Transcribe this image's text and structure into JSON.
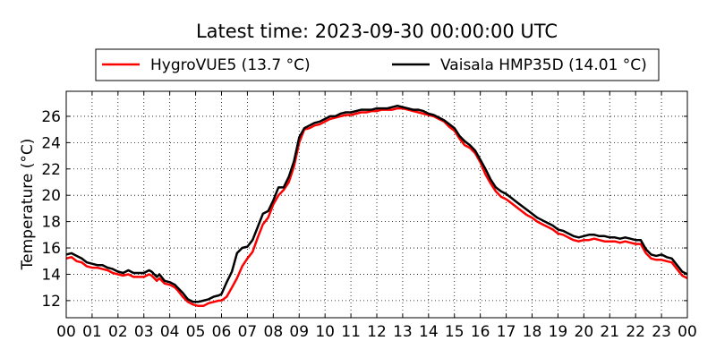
{
  "chart_data": {
    "type": "line",
    "title": "Latest time: 2023-09-30 00:00:00 UTC",
    "xlabel": "",
    "ylabel": "Temperature (°C)",
    "x_unit": "hour (UTC)",
    "xlim": [
      0,
      24
    ],
    "ylim": [
      10.7,
      27.9
    ],
    "grid": true,
    "legend_position": "top-center",
    "x_ticks": [
      "00",
      "01",
      "02",
      "03",
      "04",
      "05",
      "06",
      "07",
      "08",
      "09",
      "10",
      "11",
      "12",
      "13",
      "14",
      "15",
      "16",
      "17",
      "18",
      "19",
      "20",
      "21",
      "22",
      "23",
      "00"
    ],
    "y_ticks": [
      12,
      14,
      16,
      18,
      20,
      22,
      24,
      26
    ],
    "series": [
      {
        "name": "HygroVUE5 (13.7 °C)",
        "color": "#ff0000",
        "points": [
          [
            0.0,
            15.2
          ],
          [
            0.2,
            15.3
          ],
          [
            0.4,
            15.0
          ],
          [
            0.6,
            14.9
          ],
          [
            0.8,
            14.6
          ],
          [
            1.0,
            14.5
          ],
          [
            1.2,
            14.5
          ],
          [
            1.4,
            14.4
          ],
          [
            1.6,
            14.3
          ],
          [
            1.8,
            14.1
          ],
          [
            2.0,
            14.0
          ],
          [
            2.2,
            13.9
          ],
          [
            2.4,
            14.0
          ],
          [
            2.6,
            13.8
          ],
          [
            2.8,
            13.8
          ],
          [
            3.0,
            13.8
          ],
          [
            3.2,
            14.0
          ],
          [
            3.3,
            13.9
          ],
          [
            3.5,
            13.5
          ],
          [
            3.6,
            13.7
          ],
          [
            3.8,
            13.3
          ],
          [
            4.0,
            13.2
          ],
          [
            4.2,
            13.0
          ],
          [
            4.3,
            12.8
          ],
          [
            4.5,
            12.3
          ],
          [
            4.7,
            11.9
          ],
          [
            4.9,
            11.7
          ],
          [
            5.1,
            11.6
          ],
          [
            5.3,
            11.6
          ],
          [
            5.5,
            11.8
          ],
          [
            5.7,
            11.9
          ],
          [
            5.9,
            12.0
          ],
          [
            6.0,
            12.0
          ],
          [
            6.2,
            12.3
          ],
          [
            6.4,
            13.0
          ],
          [
            6.6,
            13.7
          ],
          [
            6.8,
            14.6
          ],
          [
            7.0,
            15.2
          ],
          [
            7.2,
            15.7
          ],
          [
            7.4,
            16.8
          ],
          [
            7.6,
            17.8
          ],
          [
            7.8,
            18.3
          ],
          [
            8.0,
            19.3
          ],
          [
            8.2,
            20.0
          ],
          [
            8.4,
            20.4
          ],
          [
            8.6,
            21.0
          ],
          [
            8.8,
            22.2
          ],
          [
            9.0,
            24.0
          ],
          [
            9.2,
            25.0
          ],
          [
            9.4,
            25.1
          ],
          [
            9.6,
            25.3
          ],
          [
            9.8,
            25.4
          ],
          [
            10.0,
            25.6
          ],
          [
            10.2,
            25.8
          ],
          [
            10.4,
            25.9
          ],
          [
            10.6,
            26.0
          ],
          [
            10.8,
            26.1
          ],
          [
            11.0,
            26.1
          ],
          [
            11.2,
            26.2
          ],
          [
            11.4,
            26.3
          ],
          [
            11.6,
            26.3
          ],
          [
            11.8,
            26.4
          ],
          [
            12.0,
            26.4
          ],
          [
            12.2,
            26.5
          ],
          [
            12.4,
            26.5
          ],
          [
            12.6,
            26.5
          ],
          [
            12.8,
            26.6
          ],
          [
            13.0,
            26.6
          ],
          [
            13.2,
            26.5
          ],
          [
            13.4,
            26.4
          ],
          [
            13.6,
            26.3
          ],
          [
            13.8,
            26.2
          ],
          [
            14.0,
            26.1
          ],
          [
            14.2,
            26.0
          ],
          [
            14.4,
            25.8
          ],
          [
            14.6,
            25.6
          ],
          [
            14.8,
            25.2
          ],
          [
            15.0,
            24.9
          ],
          [
            15.2,
            24.3
          ],
          [
            15.4,
            23.8
          ],
          [
            15.6,
            23.6
          ],
          [
            15.8,
            23.2
          ],
          [
            16.0,
            22.5
          ],
          [
            16.2,
            21.6
          ],
          [
            16.4,
            20.9
          ],
          [
            16.6,
            20.3
          ],
          [
            16.8,
            19.9
          ],
          [
            17.0,
            19.7
          ],
          [
            17.2,
            19.4
          ],
          [
            17.4,
            19.1
          ],
          [
            17.6,
            18.8
          ],
          [
            17.8,
            18.5
          ],
          [
            18.0,
            18.3
          ],
          [
            18.2,
            18.0
          ],
          [
            18.4,
            17.8
          ],
          [
            18.6,
            17.6
          ],
          [
            18.8,
            17.4
          ],
          [
            19.0,
            17.1
          ],
          [
            19.2,
            17.0
          ],
          [
            19.4,
            16.8
          ],
          [
            19.6,
            16.6
          ],
          [
            19.8,
            16.5
          ],
          [
            20.0,
            16.6
          ],
          [
            20.2,
            16.6
          ],
          [
            20.4,
            16.7
          ],
          [
            20.6,
            16.6
          ],
          [
            20.8,
            16.5
          ],
          [
            21.0,
            16.5
          ],
          [
            21.2,
            16.5
          ],
          [
            21.4,
            16.4
          ],
          [
            21.6,
            16.5
          ],
          [
            21.8,
            16.4
          ],
          [
            22.0,
            16.3
          ],
          [
            22.2,
            16.3
          ],
          [
            22.4,
            15.6
          ],
          [
            22.6,
            15.2
          ],
          [
            22.8,
            15.1
          ],
          [
            23.0,
            15.1
          ],
          [
            23.2,
            15.0
          ],
          [
            23.4,
            14.9
          ],
          [
            23.6,
            14.4
          ],
          [
            23.8,
            13.9
          ],
          [
            24.0,
            13.7
          ]
        ]
      },
      {
        "name": "Vaisala HMP35D (14.01 °C)",
        "color": "#000000",
        "points": [
          [
            0.0,
            15.5
          ],
          [
            0.2,
            15.6
          ],
          [
            0.4,
            15.4
          ],
          [
            0.6,
            15.2
          ],
          [
            0.8,
            14.9
          ],
          [
            1.0,
            14.8
          ],
          [
            1.2,
            14.7
          ],
          [
            1.4,
            14.7
          ],
          [
            1.6,
            14.5
          ],
          [
            1.8,
            14.4
          ],
          [
            2.0,
            14.2
          ],
          [
            2.2,
            14.1
          ],
          [
            2.4,
            14.3
          ],
          [
            2.6,
            14.1
          ],
          [
            2.8,
            14.1
          ],
          [
            3.0,
            14.1
          ],
          [
            3.2,
            14.3
          ],
          [
            3.3,
            14.2
          ],
          [
            3.5,
            13.8
          ],
          [
            3.6,
            14.0
          ],
          [
            3.8,
            13.5
          ],
          [
            4.0,
            13.4
          ],
          [
            4.2,
            13.2
          ],
          [
            4.3,
            13.0
          ],
          [
            4.5,
            12.6
          ],
          [
            4.7,
            12.1
          ],
          [
            4.9,
            11.9
          ],
          [
            5.1,
            11.9
          ],
          [
            5.3,
            12.0
          ],
          [
            5.5,
            12.1
          ],
          [
            5.7,
            12.3
          ],
          [
            5.9,
            12.4
          ],
          [
            6.0,
            12.5
          ],
          [
            6.2,
            13.4
          ],
          [
            6.4,
            14.2
          ],
          [
            6.6,
            15.6
          ],
          [
            6.8,
            16.0
          ],
          [
            7.0,
            16.1
          ],
          [
            7.2,
            16.6
          ],
          [
            7.4,
            17.6
          ],
          [
            7.6,
            18.6
          ],
          [
            7.8,
            18.8
          ],
          [
            8.0,
            19.6
          ],
          [
            8.2,
            20.6
          ],
          [
            8.4,
            20.6
          ],
          [
            8.6,
            21.4
          ],
          [
            8.8,
            22.6
          ],
          [
            9.0,
            24.4
          ],
          [
            9.2,
            25.1
          ],
          [
            9.4,
            25.3
          ],
          [
            9.6,
            25.5
          ],
          [
            9.8,
            25.6
          ],
          [
            10.0,
            25.8
          ],
          [
            10.2,
            26.0
          ],
          [
            10.4,
            26.0
          ],
          [
            10.6,
            26.2
          ],
          [
            10.8,
            26.3
          ],
          [
            11.0,
            26.3
          ],
          [
            11.2,
            26.4
          ],
          [
            11.4,
            26.5
          ],
          [
            11.6,
            26.5
          ],
          [
            11.8,
            26.5
          ],
          [
            12.0,
            26.6
          ],
          [
            12.2,
            26.6
          ],
          [
            12.4,
            26.6
          ],
          [
            12.6,
            26.7
          ],
          [
            12.8,
            26.8
          ],
          [
            13.0,
            26.7
          ],
          [
            13.2,
            26.6
          ],
          [
            13.4,
            26.5
          ],
          [
            13.6,
            26.5
          ],
          [
            13.8,
            26.4
          ],
          [
            14.0,
            26.2
          ],
          [
            14.2,
            26.1
          ],
          [
            14.4,
            25.9
          ],
          [
            14.6,
            25.7
          ],
          [
            14.8,
            25.4
          ],
          [
            15.0,
            25.1
          ],
          [
            15.2,
            24.5
          ],
          [
            15.4,
            24.1
          ],
          [
            15.6,
            23.8
          ],
          [
            15.8,
            23.4
          ],
          [
            16.0,
            22.7
          ],
          [
            16.2,
            22.0
          ],
          [
            16.4,
            21.2
          ],
          [
            16.6,
            20.6
          ],
          [
            16.8,
            20.3
          ],
          [
            17.0,
            20.1
          ],
          [
            17.2,
            19.8
          ],
          [
            17.4,
            19.5
          ],
          [
            17.6,
            19.2
          ],
          [
            17.8,
            18.9
          ],
          [
            18.0,
            18.6
          ],
          [
            18.2,
            18.3
          ],
          [
            18.4,
            18.1
          ],
          [
            18.6,
            17.9
          ],
          [
            18.8,
            17.7
          ],
          [
            19.0,
            17.4
          ],
          [
            19.2,
            17.3
          ],
          [
            19.4,
            17.1
          ],
          [
            19.6,
            16.9
          ],
          [
            19.8,
            16.8
          ],
          [
            20.0,
            16.9
          ],
          [
            20.2,
            17.0
          ],
          [
            20.4,
            17.0
          ],
          [
            20.6,
            16.9
          ],
          [
            20.8,
            16.9
          ],
          [
            21.0,
            16.8
          ],
          [
            21.2,
            16.8
          ],
          [
            21.4,
            16.7
          ],
          [
            21.6,
            16.8
          ],
          [
            21.8,
            16.7
          ],
          [
            22.0,
            16.6
          ],
          [
            22.2,
            16.6
          ],
          [
            22.4,
            15.9
          ],
          [
            22.6,
            15.5
          ],
          [
            22.8,
            15.4
          ],
          [
            23.0,
            15.5
          ],
          [
            23.2,
            15.3
          ],
          [
            23.4,
            15.2
          ],
          [
            23.6,
            14.7
          ],
          [
            23.8,
            14.2
          ],
          [
            24.0,
            14.0
          ]
        ]
      }
    ]
  }
}
